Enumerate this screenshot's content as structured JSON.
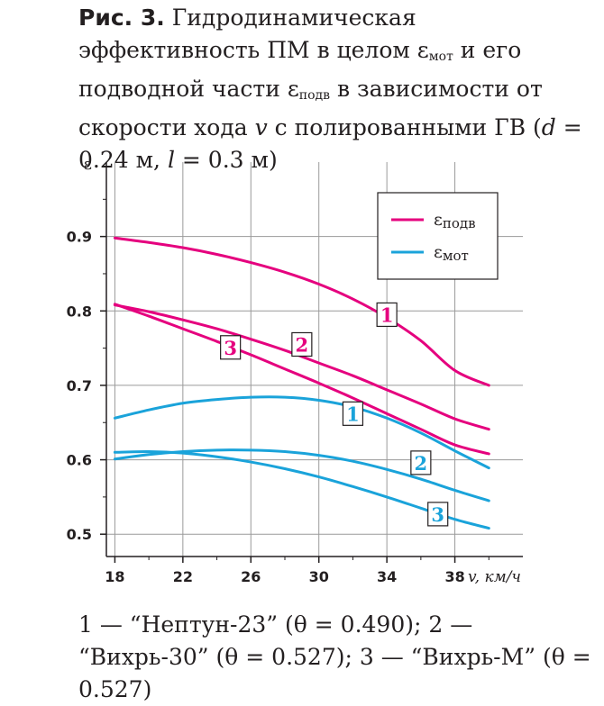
{
  "caption": {
    "fig_label": "Рис. 3.",
    "t1": " Гидродинамическая эффективность ПМ в целом ε",
    "s1": "мот",
    "t2": " и его подводной части ε",
    "s2": "подв",
    "t3": " в зависимости от скорости хода ",
    "v": "v",
    "t4": " с полированными ГВ (",
    "d": "d",
    "t5": " = 0.24 м, ",
    "l": "l",
    "t6": " = 0.3 м)"
  },
  "legend_caption": "1 — “Нептун-23” (θ = 0.490); 2 — “Вихрь-30” (θ = 0.527); 3 — “Вихрь-М” (θ = 0.527)",
  "colors": {
    "podv": "#e5007e",
    "mot": "#1aa3da",
    "axis": "#231f20",
    "grid": "#9a9a9a",
    "background": "#ffffff"
  },
  "chart_data": {
    "type": "line",
    "xlabel": "v, км/ч",
    "ylabel": "ε",
    "xlim": [
      17.5,
      42
    ],
    "ylim": [
      0.47,
      1.0
    ],
    "xticks": [
      18,
      22,
      26,
      30,
      34,
      38
    ],
    "yticks": [
      0.5,
      0.6,
      0.7,
      0.8,
      0.9
    ],
    "x_tick_labels": [
      "18",
      "22",
      "26",
      "30",
      "34",
      "38"
    ],
    "y_tick_labels": [
      "0.5",
      "0.6",
      "0.7",
      "0.8",
      "0.9"
    ],
    "grid": true,
    "legend_position": "top-right",
    "legend": [
      {
        "label": "ε",
        "sub": "подв",
        "color_key": "podv"
      },
      {
        "label": "ε",
        "sub": "мот",
        "color_key": "mot"
      }
    ],
    "series": [
      {
        "group": "podv",
        "label": "1",
        "label_at": [
          34,
          0.795
        ],
        "x": [
          18,
          20,
          22,
          24,
          26,
          28,
          30,
          32,
          34,
          36,
          38,
          40
        ],
        "y": [
          0.898,
          0.892,
          0.885,
          0.876,
          0.865,
          0.852,
          0.836,
          0.816,
          0.791,
          0.76,
          0.72,
          0.7
        ]
      },
      {
        "group": "podv",
        "label": "2",
        "label_at": [
          29,
          0.755
        ],
        "x": [
          18,
          20,
          22,
          24,
          26,
          28,
          30,
          32,
          34,
          36,
          38,
          40
        ],
        "y": [
          0.808,
          0.799,
          0.788,
          0.776,
          0.762,
          0.747,
          0.73,
          0.713,
          0.694,
          0.675,
          0.655,
          0.641
        ]
      },
      {
        "group": "podv",
        "label": "3",
        "label_at": [
          24.8,
          0.751
        ],
        "x": [
          18,
          20,
          22,
          24,
          26,
          28,
          30,
          32,
          34,
          36,
          38,
          40
        ],
        "y": [
          0.809,
          0.793,
          0.776,
          0.759,
          0.741,
          0.722,
          0.703,
          0.683,
          0.662,
          0.641,
          0.62,
          0.608
        ]
      },
      {
        "group": "mot",
        "label": "1",
        "label_at": [
          32,
          0.662
        ],
        "x": [
          18,
          20,
          22,
          24,
          26,
          28,
          30,
          32,
          34,
          36,
          38,
          40
        ],
        "y": [
          0.656,
          0.667,
          0.676,
          0.681,
          0.684,
          0.684,
          0.68,
          0.671,
          0.656,
          0.636,
          0.612,
          0.589
        ]
      },
      {
        "group": "mot",
        "label": "2",
        "label_at": [
          36,
          0.596
        ],
        "x": [
          18,
          20,
          22,
          24,
          26,
          28,
          30,
          32,
          34,
          36,
          38,
          40
        ],
        "y": [
          0.601,
          0.607,
          0.611,
          0.613,
          0.613,
          0.611,
          0.606,
          0.598,
          0.587,
          0.574,
          0.559,
          0.545
        ]
      },
      {
        "group": "mot",
        "label": "3",
        "label_at": [
          37,
          0.527
        ],
        "x": [
          18,
          20,
          22,
          24,
          26,
          28,
          30,
          32,
          34,
          36,
          38,
          40
        ],
        "y": [
          0.61,
          0.611,
          0.609,
          0.604,
          0.597,
          0.588,
          0.577,
          0.564,
          0.55,
          0.535,
          0.52,
          0.508
        ]
      }
    ]
  }
}
